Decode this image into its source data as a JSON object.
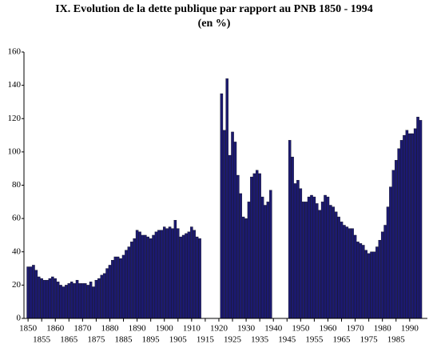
{
  "chart_data": {
    "type": "bar",
    "title": "IX.  Evolution de la dette publique par rapport au PNB 1850 - 1994",
    "subtitle": "(en %)",
    "color": "#1c1a70",
    "x": [
      1850,
      1851,
      1852,
      1853,
      1854,
      1855,
      1856,
      1857,
      1858,
      1859,
      1860,
      1861,
      1862,
      1863,
      1864,
      1865,
      1866,
      1867,
      1868,
      1869,
      1870,
      1871,
      1872,
      1873,
      1874,
      1875,
      1876,
      1877,
      1878,
      1879,
      1880,
      1881,
      1882,
      1883,
      1884,
      1885,
      1886,
      1887,
      1888,
      1889,
      1890,
      1891,
      1892,
      1893,
      1894,
      1895,
      1896,
      1897,
      1898,
      1899,
      1900,
      1901,
      1902,
      1903,
      1904,
      1905,
      1906,
      1907,
      1908,
      1909,
      1910,
      1911,
      1912,
      1913,
      1914,
      1915,
      1916,
      1917,
      1918,
      1919,
      1920,
      1921,
      1922,
      1923,
      1924,
      1925,
      1926,
      1927,
      1928,
      1929,
      1930,
      1931,
      1932,
      1933,
      1934,
      1935,
      1936,
      1937,
      1938,
      1939,
      1940,
      1941,
      1942,
      1943,
      1944,
      1945,
      1946,
      1947,
      1948,
      1949,
      1950,
      1951,
      1952,
      1953,
      1954,
      1955,
      1956,
      1957,
      1958,
      1959,
      1960,
      1961,
      1962,
      1963,
      1964,
      1965,
      1966,
      1967,
      1968,
      1969,
      1970,
      1971,
      1972,
      1973,
      1974,
      1975,
      1976,
      1977,
      1978,
      1979,
      1980,
      1981,
      1982,
      1983,
      1984,
      1985,
      1986,
      1987,
      1988,
      1989,
      1990,
      1991,
      1992,
      1993,
      1994
    ],
    "values": [
      31,
      31,
      32,
      29,
      25,
      24,
      23,
      23,
      24,
      25,
      24,
      22,
      20,
      19,
      20,
      21,
      22,
      21,
      23,
      21,
      21,
      21,
      20,
      22,
      19,
      23,
      24,
      26,
      27,
      30,
      32,
      35,
      37,
      37,
      36,
      38,
      41,
      43,
      46,
      48,
      53,
      52,
      50,
      50,
      49,
      48,
      50,
      52,
      53,
      53,
      55,
      54,
      55,
      54,
      59,
      54,
      49,
      50,
      51,
      52,
      55,
      53,
      49,
      48,
      null,
      null,
      null,
      null,
      null,
      null,
      null,
      135,
      113,
      144,
      98,
      112,
      106,
      86,
      75,
      61,
      60,
      70,
      85,
      87,
      89,
      87,
      73,
      68,
      70,
      77,
      null,
      null,
      null,
      null,
      null,
      null,
      107,
      97,
      81,
      83,
      78,
      70,
      70,
      73,
      74,
      73,
      69,
      65,
      70,
      74,
      73,
      68,
      67,
      64,
      61,
      58,
      56,
      55,
      54,
      54,
      50,
      46,
      45,
      44,
      41,
      39,
      40,
      40,
      43,
      47,
      52,
      56,
      67,
      79,
      89,
      95,
      102,
      107,
      110,
      113,
      111,
      111,
      114,
      121,
      119
    ],
    "xlim": [
      1848.5,
      1996.5
    ],
    "xticks": [
      1850,
      1855,
      1860,
      1865,
      1870,
      1875,
      1880,
      1885,
      1890,
      1895,
      1900,
      1905,
      1910,
      1915,
      1920,
      1925,
      1930,
      1935,
      1940,
      1945,
      1950,
      1955,
      1960,
      1965,
      1970,
      1975,
      1980,
      1985,
      1990
    ],
    "ylim": [
      0,
      160
    ],
    "yticks": [
      0,
      20,
      40,
      60,
      80,
      100,
      120,
      140,
      160
    ]
  }
}
